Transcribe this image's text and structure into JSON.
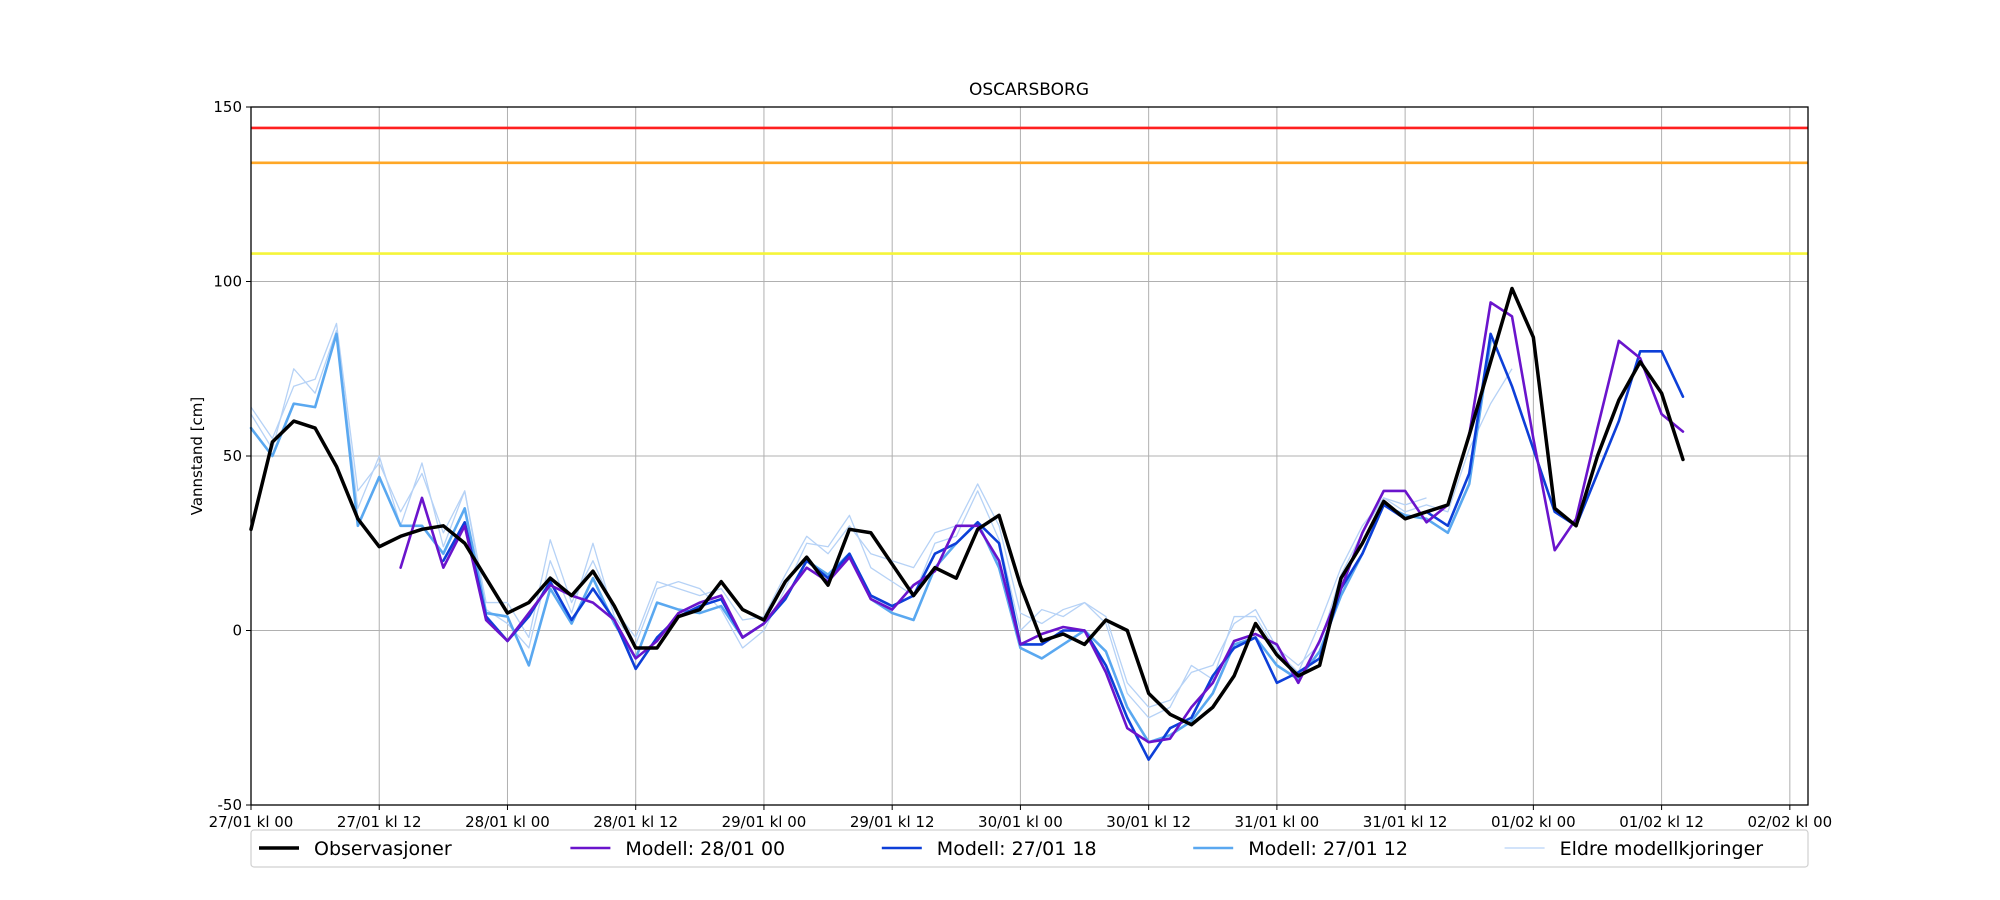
{
  "chart_data": {
    "type": "line",
    "title": "OSCARSBORG",
    "y_label": "Vannstand [cm]",
    "x": [
      0,
      2,
      4,
      6,
      8,
      10,
      12,
      14,
      16,
      18,
      20,
      22,
      24,
      26,
      28,
      30,
      32,
      34,
      36,
      38,
      40,
      42,
      44,
      46,
      48,
      50,
      52,
      54,
      56,
      58,
      60,
      62,
      64,
      66,
      68,
      70,
      72,
      74,
      76,
      78,
      80,
      82,
      84,
      86,
      88,
      90,
      92,
      94,
      96,
      98,
      100,
      102,
      104,
      106,
      108,
      110,
      112,
      114,
      116,
      118,
      120,
      122,
      124,
      126,
      128,
      130,
      132,
      134
    ],
    "xlim": [
      0,
      145.7
    ],
    "xticks": [
      {
        "value": 0,
        "label": "27/01 kl 00"
      },
      {
        "value": 12,
        "label": "27/01 kl 12"
      },
      {
        "value": 24,
        "label": "28/01 kl 00"
      },
      {
        "value": 36,
        "label": "28/01 kl 12"
      },
      {
        "value": 48,
        "label": "29/01 kl 00"
      },
      {
        "value": 60,
        "label": "29/01 kl 12"
      },
      {
        "value": 72,
        "label": "30/01 kl 00"
      },
      {
        "value": 84,
        "label": "30/01 kl 12"
      },
      {
        "value": 96,
        "label": "31/01 kl 00"
      },
      {
        "value": 108,
        "label": "31/01 kl 12"
      },
      {
        "value": 120,
        "label": "01/02 kl 00"
      },
      {
        "value": 132,
        "label": "01/02 kl 12"
      },
      {
        "value": 144,
        "label": "02/02 kl 00"
      }
    ],
    "ylim": [
      -50,
      150
    ],
    "yticks": [
      -50,
      0,
      50,
      100,
      150
    ],
    "grid": true,
    "thresholds": [
      {
        "value": 144,
        "color": "#ff2020"
      },
      {
        "value": 134,
        "color": "#ffa726"
      },
      {
        "value": 108,
        "color": "#f5f53a"
      }
    ],
    "series": [
      {
        "name": "Observasjoner",
        "color": "#000000",
        "linewidth": 3.5,
        "values": [
          29,
          54,
          60,
          58,
          47,
          32,
          24,
          27,
          29,
          30,
          25,
          15,
          5,
          8,
          15,
          10,
          17,
          7,
          -5,
          -5,
          4,
          6,
          14,
          6,
          3,
          14,
          21,
          13,
          29,
          28,
          19,
          10,
          18,
          15,
          29,
          33,
          13,
          -3,
          -1,
          -4,
          3,
          0,
          -18,
          -24,
          -27,
          -22,
          -13,
          2,
          -7,
          -13,
          -10,
          15,
          25,
          37,
          32,
          34,
          36,
          56,
          77,
          98,
          84,
          35,
          30,
          50,
          66,
          77,
          68,
          49
        ]
      },
      {
        "name": "Modell: 28/01 00",
        "color": "#6a14cc",
        "linewidth": 2.6,
        "values": [
          null,
          null,
          null,
          null,
          null,
          null,
          null,
          18,
          38,
          18,
          30,
          3,
          -3,
          5,
          13,
          10,
          8,
          3,
          -8,
          -3,
          5,
          8,
          10,
          -2,
          2,
          10,
          18,
          14,
          21,
          9,
          6,
          13,
          17,
          30,
          30,
          20,
          -4,
          -1,
          1,
          0,
          -12,
          -28,
          -32,
          -31,
          -22,
          -15,
          -3,
          -1,
          -4,
          -15,
          -3,
          12,
          28,
          40,
          40,
          31,
          36,
          56,
          94,
          90,
          55,
          23,
          32,
          58,
          83,
          78,
          62,
          57
        ]
      },
      {
        "name": "Modell: 27/01 18",
        "color": "#0d3fd8",
        "linewidth": 2.6,
        "values": [
          null,
          null,
          null,
          null,
          null,
          null,
          null,
          null,
          null,
          20,
          31,
          4,
          -3,
          4,
          14,
          3,
          12,
          3,
          -11,
          -2,
          4,
          7,
          9,
          -2,
          2,
          9,
          20,
          15,
          22,
          10,
          7,
          10,
          22,
          25,
          31,
          25,
          -4,
          -4,
          0,
          0,
          -10,
          -25,
          -37,
          -28,
          -25,
          -13,
          -5,
          -2,
          -15,
          -12,
          -8,
          12,
          22,
          36,
          32,
          34,
          30,
          45,
          85,
          70,
          52,
          34,
          30,
          45,
          60,
          80,
          80,
          67
        ]
      },
      {
        "name": "Modell: 27/01 12",
        "color": "#5aa8f0",
        "linewidth": 2.6,
        "values": [
          58,
          50,
          65,
          64,
          85,
          30,
          44,
          30,
          30,
          22,
          35,
          5,
          4,
          -10,
          12,
          2,
          15,
          2,
          -8,
          8,
          6,
          5,
          7,
          -2,
          2,
          9,
          20,
          16,
          22,
          9,
          5,
          3,
          18,
          25,
          31,
          18,
          -5,
          -8,
          -4,
          0,
          -6,
          -22,
          -32,
          -30,
          -26,
          -18,
          -4,
          -2,
          -10,
          -14,
          -6,
          10,
          22,
          36,
          33,
          32,
          28,
          42,
          83,
          null,
          null,
          null,
          null,
          null,
          null,
          null,
          null,
          null
        ]
      }
    ],
    "older_runs": {
      "name": "Eldre modellkjoringer",
      "color": "#b6d2f6",
      "linewidth": 1.3,
      "runs": [
        [
          64,
          55,
          70,
          72,
          88,
          40,
          48,
          34,
          45,
          28,
          40,
          8,
          8,
          -2,
          26,
          8,
          20,
          6,
          -2,
          14,
          12,
          10,
          12,
          3,
          4,
          16,
          27,
          22,
          30,
          22,
          20,
          18,
          28,
          30,
          42,
          30,
          5,
          2,
          6,
          8,
          4,
          -15,
          -22,
          -20,
          -12,
          -10,
          2,
          6,
          -5,
          -10,
          -4,
          16,
          28,
          38,
          36,
          38,
          null,
          null,
          null,
          null,
          null,
          null,
          null,
          null,
          null,
          null,
          null,
          null
        ],
        [
          62,
          52,
          75,
          68,
          86,
          35,
          50,
          30,
          48,
          24,
          40,
          6,
          2,
          -5,
          20,
          5,
          25,
          4,
          -4,
          12,
          14,
          12,
          6,
          -5,
          0,
          12,
          25,
          24,
          33,
          18,
          14,
          10,
          25,
          27,
          40,
          26,
          0,
          6,
          4,
          8,
          2,
          -18,
          -25,
          -22,
          -10,
          -14,
          4,
          4,
          -6,
          -12,
          2,
          18,
          30,
          38,
          34,
          36,
          34,
          52,
          65,
          75,
          null,
          null,
          null,
          null,
          null,
          null,
          null,
          null
        ]
      ]
    },
    "legend_position": "bottom"
  }
}
